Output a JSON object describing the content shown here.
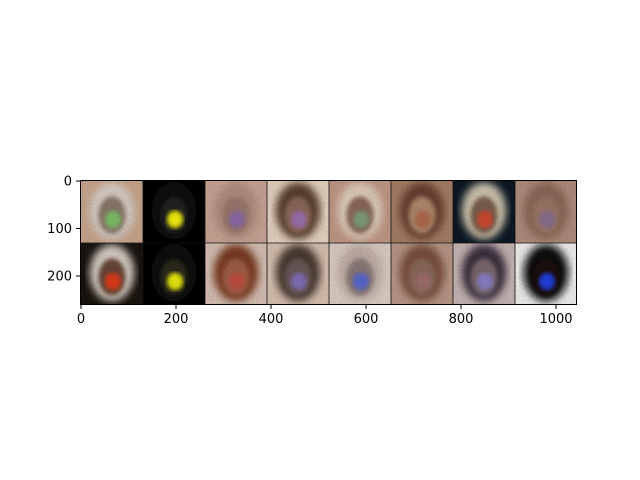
{
  "figure": {
    "axes": {
      "x_ticks": [
        "0",
        "200",
        "400",
        "600",
        "800",
        "1000"
      ],
      "y_ticks": [
        "0",
        "100",
        "200"
      ]
    },
    "grid": {
      "rows": 2,
      "cols": 8,
      "content": "generated face samples"
    },
    "tiles": [
      {
        "bg": "#c9a890",
        "face": "#8a7a6a",
        "blob": "#7fbf6a",
        "hair": "#d8d0c8"
      },
      {
        "bg": "#050505",
        "face": "#222222",
        "blob": "#f2f20a",
        "hair": "#111111"
      },
      {
        "bg": "#c8a898",
        "face": "#9a7a70",
        "blob": "#8a6aa8",
        "hair": "#b09080"
      },
      {
        "bg": "#e6d6c6",
        "face": "#8a6a5a",
        "blob": "#9a70b0",
        "hair": "#5a4030"
      },
      {
        "bg": "#c09a88",
        "face": "#8a6a5a",
        "blob": "#7fa07a",
        "hair": "#e0d0c0"
      },
      {
        "bg": "#a68068",
        "face": "#b08a70",
        "blob": "#b06a50",
        "hair": "#6a4030"
      },
      {
        "bg": "#0e1a26",
        "face": "#7a6050",
        "blob": "#d04a30",
        "hair": "#d0c8b0"
      },
      {
        "bg": "#b09080",
        "face": "#9a7868",
        "blob": "#8a7090",
        "hair": "#8a6a5a"
      },
      {
        "bg": "#1a1410",
        "face": "#6a4a3a",
        "blob": "#e03a1a",
        "hair": "#d8d0c8"
      },
      {
        "bg": "#050505",
        "face": "#2a2a1a",
        "blob": "#eaea10",
        "hair": "#111111"
      },
      {
        "bg": "#d6c2b6",
        "face": "#a0604a",
        "blob": "#c05040",
        "hair": "#7a3a20"
      },
      {
        "bg": "#d8c4b4",
        "face": "#6a5a5a",
        "blob": "#8070b8",
        "hair": "#4a3a30"
      },
      {
        "bg": "#ddd0c8",
        "face": "#8a7a7a",
        "blob": "#5a6ad0",
        "hair": "#c0b0a8"
      },
      {
        "bg": "#b89a8a",
        "face": "#8a6a5a",
        "blob": "#a07070",
        "hair": "#7a5040"
      },
      {
        "bg": "#c8b8b8",
        "face": "#7a6a70",
        "blob": "#8a80c8",
        "hair": "#3a3040"
      },
      {
        "bg": "#f2f2f2",
        "face": "#1a1010",
        "blob": "#2040e0",
        "hair": "#0a0a0a"
      }
    ]
  }
}
